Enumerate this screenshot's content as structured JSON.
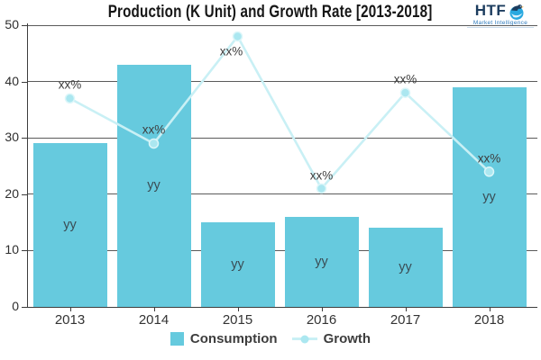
{
  "title": "Production (K Unit) and Growth Rate [2013-2018]",
  "logo": {
    "brand": "HTF",
    "tagline": "Market Intelligence"
  },
  "colors": {
    "bar": "#66cade",
    "line": "#c9f0f5",
    "marker": "#abe7f0",
    "marker_stroke": "#dcf6f9",
    "grid": "#5a5a5a",
    "axis": "#3d3d3d",
    "text": "#3d3d3d",
    "logo_navy": "#1c3c5e",
    "logo_blue": "#29a9e0"
  },
  "legend": [
    {
      "label": "Consumption",
      "type": "bar"
    },
    {
      "label": "Growth",
      "type": "line"
    }
  ],
  "chart_data": {
    "type": "bar+line",
    "title": "Production (K Unit) and Growth Rate [2013-2018]",
    "categories": [
      "2013",
      "2014",
      "2015",
      "2016",
      "2017",
      "2018"
    ],
    "series": [
      {
        "name": "Consumption",
        "type": "bar",
        "values": [
          29,
          43,
          15,
          16,
          14,
          39
        ],
        "point_labels": [
          "yy",
          "yy",
          "yy",
          "yy",
          "yy",
          "yy"
        ]
      },
      {
        "name": "Growth",
        "type": "line",
        "values": [
          37,
          29,
          48,
          21,
          38,
          24
        ],
        "point_labels": [
          "xx%",
          "xx%",
          "xx%",
          "xx%",
          "xx%",
          "xx%"
        ],
        "label_positions": [
          "above",
          "above",
          "below",
          "above",
          "above",
          "above"
        ]
      }
    ],
    "xlabel": "",
    "ylabel": "",
    "ylim": [
      0,
      50
    ],
    "yticks": [
      0,
      10,
      20,
      30,
      40,
      50
    ],
    "grid": true,
    "legend_position": "bottom"
  }
}
